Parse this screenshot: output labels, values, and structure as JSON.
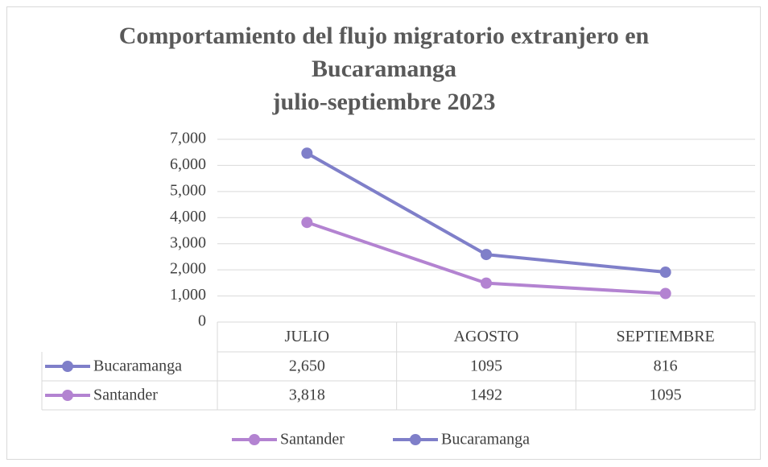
{
  "chart_data": {
    "type": "line",
    "stacked": true,
    "title": [
      "Comportamiento del flujo migratorio extranjero en",
      "Bucaramanga",
      "julio-septiembre 2023"
    ],
    "categories": [
      "JULIO",
      "AGOSTO",
      "SEPTIEMBRE"
    ],
    "series": [
      {
        "name": "Santander",
        "color": "#b383d1",
        "values": [
          3818,
          1492,
          1095
        ],
        "value_labels": [
          "3,818",
          "1492",
          "1095"
        ]
      },
      {
        "name": "Bucaramanga",
        "color": "#7f7fc9",
        "values": [
          2650,
          1095,
          816
        ],
        "value_labels": [
          "2,650",
          "1095",
          "816"
        ]
      }
    ],
    "ylim": [
      0,
      7000
    ],
    "yticks": [
      0,
      {
        "value": 1000,
        "label": "1,000"
      },
      {
        "value": 2000,
        "label": "2,000"
      },
      {
        "value": 3000,
        "label": "3,000"
      },
      {
        "value": 4000,
        "label": "4,000"
      },
      {
        "value": 5000,
        "label": "5,000"
      },
      {
        "value": 6000,
        "label": "6,000"
      },
      {
        "value": 7000,
        "label": "7,000"
      }
    ],
    "grid": true,
    "legend": "bottom",
    "data_table": true
  }
}
